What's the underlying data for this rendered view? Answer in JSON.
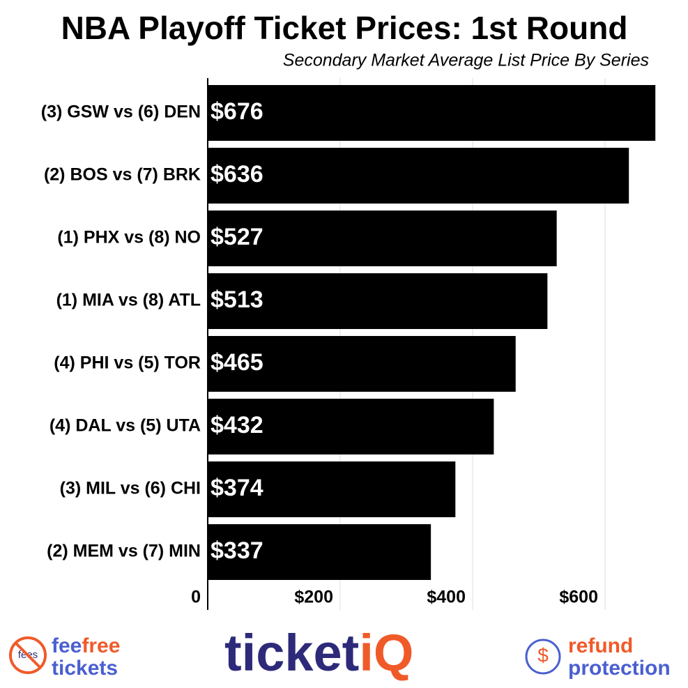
{
  "chart_data": {
    "type": "bar",
    "orientation": "horizontal",
    "title": "NBA Playoff Ticket Prices: 1st Round",
    "subtitle": "Secondary Market Average List Price By Series",
    "categories": [
      "(3) GSW vs (6) DEN",
      "(2) BOS vs (7) BRK",
      "(1) PHX vs (8) NO",
      "(1) MIA vs (8) ATL",
      "(4) PHI vs (5) TOR",
      "(4) DAL vs (5) UTA",
      "(3) MIL vs (6) CHI",
      "(2) MEM vs (7) MIN"
    ],
    "values": [
      676,
      636,
      527,
      513,
      465,
      432,
      374,
      337
    ],
    "value_labels": [
      "$676",
      "$636",
      "$527",
      "$513",
      "$465",
      "$432",
      "$374",
      "$337"
    ],
    "color": "#000000",
    "xlim": [
      0,
      700
    ],
    "xticks": [
      0,
      {
        "value": 200,
        "label": "$200"
      },
      {
        "value": 400,
        "label": "$400"
      },
      {
        "value": 600,
        "label": "$600"
      }
    ],
    "grid": true
  },
  "footer": {
    "left": {
      "icon": "fees",
      "line1a": "fee",
      "line1b": "free",
      "line2": "tickets"
    },
    "center": {
      "a": "ticket",
      "b": "iQ"
    },
    "right": {
      "line1": "refund",
      "line2": "protection",
      "icon": "$"
    }
  }
}
